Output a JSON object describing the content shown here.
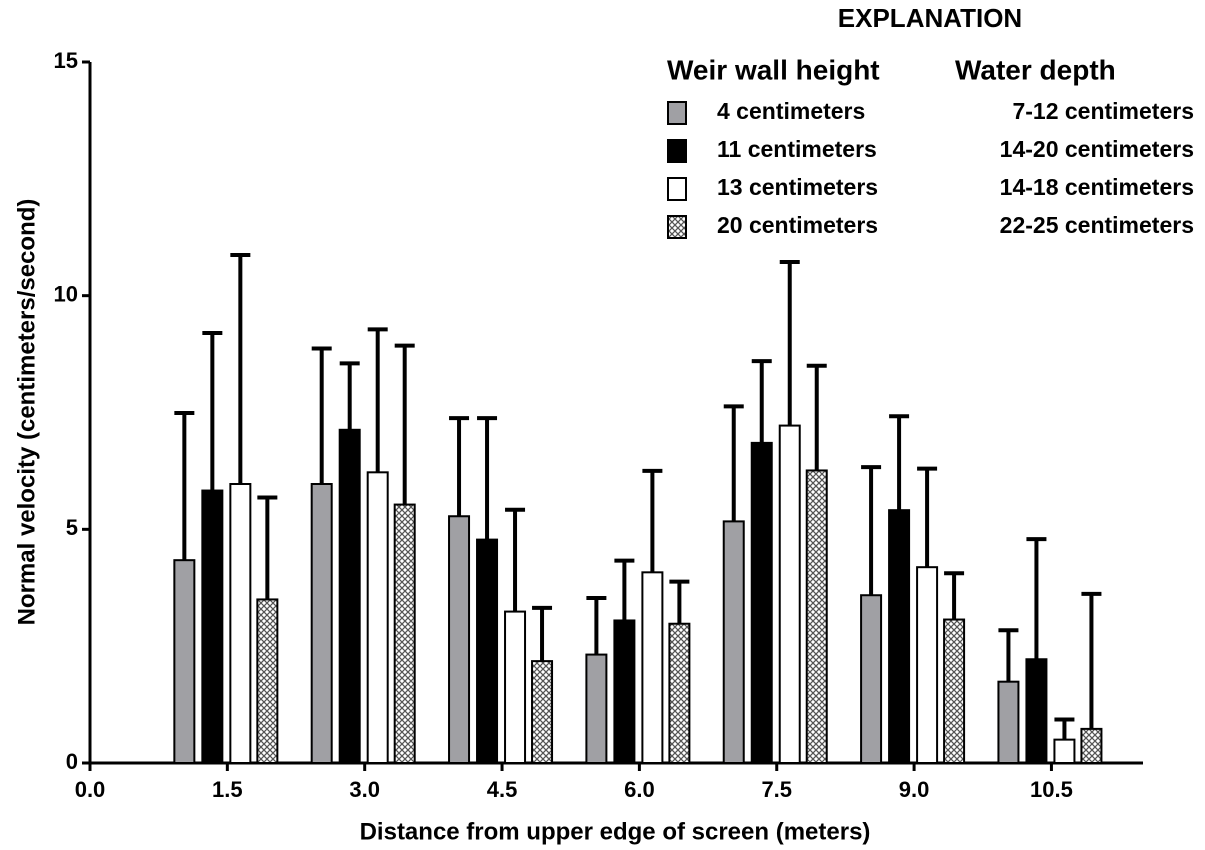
{
  "chart_data": {
    "type": "grouped-bar-error",
    "legend_title": "EXPLANATION",
    "legend_headers": [
      "Weir wall height",
      "Water depth"
    ],
    "x_label": "Distance from upper edge of screen (meters)",
    "y_label": "Normal velocity (centimeters/second)",
    "x": [
      1.5,
      3.0,
      4.5,
      6.0,
      7.5,
      9.0,
      10.5
    ],
    "xlim": [
      0,
      11.5
    ],
    "xticks": [
      {
        "value": 0,
        "label": "0.0"
      },
      1.5,
      {
        "value": 3,
        "label": "3.0"
      },
      4.5,
      {
        "value": 6,
        "label": "6.0"
      },
      7.5,
      {
        "value": 9,
        "label": "9.0"
      },
      10.5
    ],
    "ylim": [
      0,
      15
    ],
    "yticks": [
      0,
      5,
      10,
      15
    ],
    "series": [
      {
        "name": "4 centimeters",
        "depth": "7-12 centimeters",
        "color": "#a0a0a4",
        "fill": "solid",
        "values": [
          4.34,
          5.97,
          5.28,
          2.32,
          5.17,
          3.59,
          1.74
        ],
        "errors": [
          3.15,
          2.9,
          2.1,
          1.21,
          2.46,
          2.74,
          1.1
        ]
      },
      {
        "name": "11 centimeters",
        "depth": "14-20 centimeters",
        "color": "#000000",
        "fill": "solid",
        "values": [
          5.83,
          7.13,
          4.78,
          3.05,
          6.85,
          5.41,
          2.22
        ],
        "errors": [
          3.37,
          1.42,
          2.6,
          1.28,
          1.75,
          2.01,
          2.57
        ]
      },
      {
        "name": "13 centimeters",
        "depth": "14-18 centimeters",
        "color": "#ffffff",
        "fill": "solid",
        "values": [
          5.97,
          6.22,
          3.24,
          4.08,
          7.22,
          4.19,
          0.5
        ],
        "errors": [
          4.9,
          3.06,
          2.18,
          2.17,
          3.5,
          2.11,
          0.43
        ]
      },
      {
        "name": "20 centimeters",
        "depth": "22-25 centimeters",
        "color": "#888888",
        "fill": "crosshatch",
        "values": [
          3.5,
          5.53,
          2.18,
          2.98,
          6.26,
          3.07,
          0.73
        ],
        "errors": [
          2.18,
          3.4,
          1.14,
          0.9,
          2.24,
          0.99,
          2.89
        ]
      }
    ]
  }
}
